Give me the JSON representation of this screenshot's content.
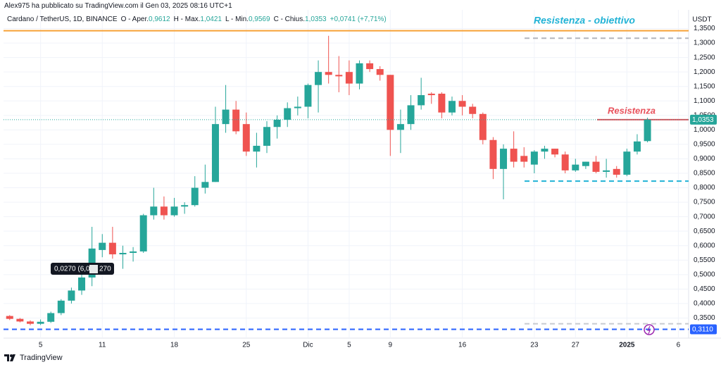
{
  "chart_data": {
    "type": "candlestick",
    "title": "Alex975 ha pubblicato su TradingView.com il Gen 03, 2025 08:16 UTC+1",
    "symbol": "Cardano / TetherUS, 1D, BINANCE",
    "ohlc_legend": [
      {
        "label": "O - Aper.",
        "value": "0,9612"
      },
      {
        "label": "H - Max.",
        "value": "1,0421"
      },
      {
        "label": "L - Min.",
        "value": "0,9569"
      },
      {
        "label": "C - Chius.",
        "value": "1,0353"
      }
    ],
    "change": "+0,0741 (+7,71%)",
    "currency": "USDT",
    "brand": "TradingView",
    "up_color": "#26a69a",
    "down_color": "#ef5350",
    "grid": true,
    "x": [
      0,
      1,
      2,
      3,
      4,
      5,
      6,
      7,
      8,
      9,
      10,
      11,
      12,
      13,
      14,
      15,
      16,
      17,
      18,
      19,
      20,
      21,
      22,
      23,
      24,
      25,
      26,
      27,
      28,
      29,
      30,
      31,
      32,
      33,
      34,
      35,
      36,
      37,
      38,
      39,
      40,
      41,
      42,
      43,
      44,
      45,
      46,
      47,
      48,
      49,
      50,
      51,
      52,
      53,
      54,
      55,
      56,
      57,
      58,
      59,
      60,
      61,
      62
    ],
    "open": [
      0.357,
      0.347,
      0.338,
      0.33,
      0.337,
      0.367,
      0.41,
      0.445,
      0.49,
      0.585,
      0.61,
      0.57,
      0.575,
      0.58,
      0.705,
      0.735,
      0.705,
      0.735,
      0.74,
      0.8,
      0.82,
      1.02,
      1.07,
      1.02,
      0.925,
      0.945,
      1.01,
      1.035,
      1.075,
      1.08,
      1.155,
      1.2,
      1.19,
      1.2,
      1.16,
      1.23,
      1.21,
      1.19,
      1.0,
      1.02,
      1.085,
      1.125,
      1.125,
      1.06,
      1.1,
      1.08,
      1.055,
      0.965,
      0.865,
      0.935,
      0.91,
      0.88,
      0.925,
      0.935,
      0.915,
      0.86,
      0.875,
      0.89,
      0.855,
      0.865,
      0.845,
      0.925,
      0.9612
    ],
    "high": [
      0.36,
      0.35,
      0.342,
      0.345,
      0.372,
      0.415,
      0.455,
      0.5,
      0.665,
      0.64,
      0.665,
      0.6,
      0.595,
      0.71,
      0.8,
      0.77,
      0.765,
      0.75,
      0.84,
      0.88,
      1.08,
      1.155,
      1.1,
      1.06,
      0.99,
      1.03,
      1.05,
      1.095,
      1.115,
      1.16,
      1.24,
      1.325,
      1.255,
      1.24,
      1.24,
      1.24,
      1.22,
      1.19,
      1.07,
      1.12,
      1.18,
      1.13,
      1.13,
      1.115,
      1.12,
      1.09,
      1.06,
      0.975,
      0.95,
      0.995,
      0.94,
      0.93,
      0.945,
      0.935,
      0.925,
      0.9,
      0.89,
      0.91,
      0.9,
      0.875,
      0.935,
      0.985,
      1.0421
    ],
    "low": [
      0.343,
      0.335,
      0.325,
      0.326,
      0.333,
      0.36,
      0.4,
      0.43,
      0.46,
      0.56,
      0.555,
      0.52,
      0.545,
      0.575,
      0.69,
      0.69,
      0.7,
      0.71,
      0.735,
      0.78,
      0.82,
      0.99,
      0.985,
      0.91,
      0.87,
      0.92,
      0.97,
      1.01,
      1.05,
      1.04,
      1.06,
      1.16,
      1.13,
      1.12,
      1.14,
      1.2,
      1.17,
      0.91,
      0.92,
      1.0,
      1.07,
      1.09,
      1.04,
      1.05,
      1.05,
      1.04,
      0.95,
      0.83,
      0.76,
      0.87,
      0.87,
      0.85,
      0.9,
      0.905,
      0.85,
      0.855,
      0.865,
      0.85,
      0.835,
      0.835,
      0.84,
      0.915,
      0.9569
    ],
    "close": [
      0.347,
      0.338,
      0.33,
      0.337,
      0.367,
      0.41,
      0.445,
      0.49,
      0.59,
      0.61,
      0.57,
      0.575,
      0.58,
      0.705,
      0.735,
      0.705,
      0.735,
      0.74,
      0.8,
      0.82,
      1.02,
      1.07,
      0.995,
      0.925,
      0.945,
      1.01,
      1.035,
      1.075,
      1.08,
      1.155,
      1.2,
      1.19,
      1.185,
      1.16,
      1.23,
      1.21,
      1.19,
      1.0,
      1.02,
      1.085,
      1.12,
      1.12,
      1.06,
      1.1,
      1.08,
      1.055,
      0.965,
      0.865,
      0.935,
      0.89,
      0.89,
      0.925,
      0.935,
      0.915,
      0.86,
      0.88,
      0.89,
      0.855,
      0.86,
      0.845,
      0.925,
      0.96,
      1.0353
    ],
    "xlim": [
      -0.6,
      66
    ],
    "xticks": [
      {
        "value": 3,
        "label": "5"
      },
      {
        "value": 9,
        "label": "11"
      },
      {
        "value": 16,
        "label": "18"
      },
      {
        "value": 23,
        "label": "25"
      },
      {
        "value": 29,
        "label": "Dic"
      },
      {
        "value": 33,
        "label": "5"
      },
      {
        "value": 37,
        "label": "9"
      },
      {
        "value": 44,
        "label": "16"
      },
      {
        "value": 51,
        "label": "23"
      },
      {
        "value": 55,
        "label": "27"
      },
      {
        "value": 60,
        "label": "2025"
      },
      {
        "value": 65,
        "label": "6"
      }
    ],
    "ylim": [
      0.3,
      1.4
    ],
    "yticks": [
      {
        "value": 0.35,
        "label": "0,3500"
      },
      {
        "value": 0.4,
        "label": "0,4000"
      },
      {
        "value": 0.45,
        "label": "0,4500"
      },
      {
        "value": 0.5,
        "label": "0,5000"
      },
      {
        "value": 0.55,
        "label": "0,5500"
      },
      {
        "value": 0.6,
        "label": "0,6000"
      },
      {
        "value": 0.65,
        "label": "0,6500"
      },
      {
        "value": 0.7,
        "label": "0,7000"
      },
      {
        "value": 0.75,
        "label": "0,7500"
      },
      {
        "value": 0.8,
        "label": "0,8000"
      },
      {
        "value": 0.85,
        "label": "0,8500"
      },
      {
        "value": 0.9,
        "label": "0,9000"
      },
      {
        "value": 0.95,
        "label": "0,9500"
      },
      {
        "value": 1.0,
        "label": "1,0000"
      },
      {
        "value": 1.05,
        "label": "1,0500"
      },
      {
        "value": 1.1,
        "label": "1,1000"
      },
      {
        "value": 1.15,
        "label": "1,1500"
      },
      {
        "value": 1.2,
        "label": "1,2000"
      },
      {
        "value": 1.25,
        "label": "1,2500"
      },
      {
        "value": 1.3,
        "label": "1,3000"
      },
      {
        "value": 1.35,
        "label": "1,3500"
      }
    ],
    "levels": [
      {
        "value": 1.3425,
        "color": "#f7a035",
        "dashed": false
      },
      {
        "value": 1.3165,
        "color": "#b2b5be",
        "dashed": true
      },
      {
        "value": 0.823,
        "color": "#22b3d6",
        "dashed": true
      },
      {
        "value": 1.0353,
        "color": "#e8505b",
        "dashed": false
      },
      {
        "value": 0.311,
        "color": "#2962ff",
        "dashed": true
      },
      {
        "value": 0.33,
        "color": "#c8cad0",
        "dashed": true
      }
    ],
    "price_tags": [
      {
        "value": 1.0353,
        "label": "1,0353",
        "color": "#26a69a"
      },
      {
        "value": 0.311,
        "label": "0,3110",
        "color": "#2962ff"
      }
    ],
    "annotations": [
      {
        "text": "Resistenza - obiettivo",
        "color": "#22b3d6"
      },
      {
        "text": "Resistenza",
        "color": "#e8505b"
      }
    ],
    "tooltip": [
      "0,0270 (6,0",
      "270"
    ]
  }
}
